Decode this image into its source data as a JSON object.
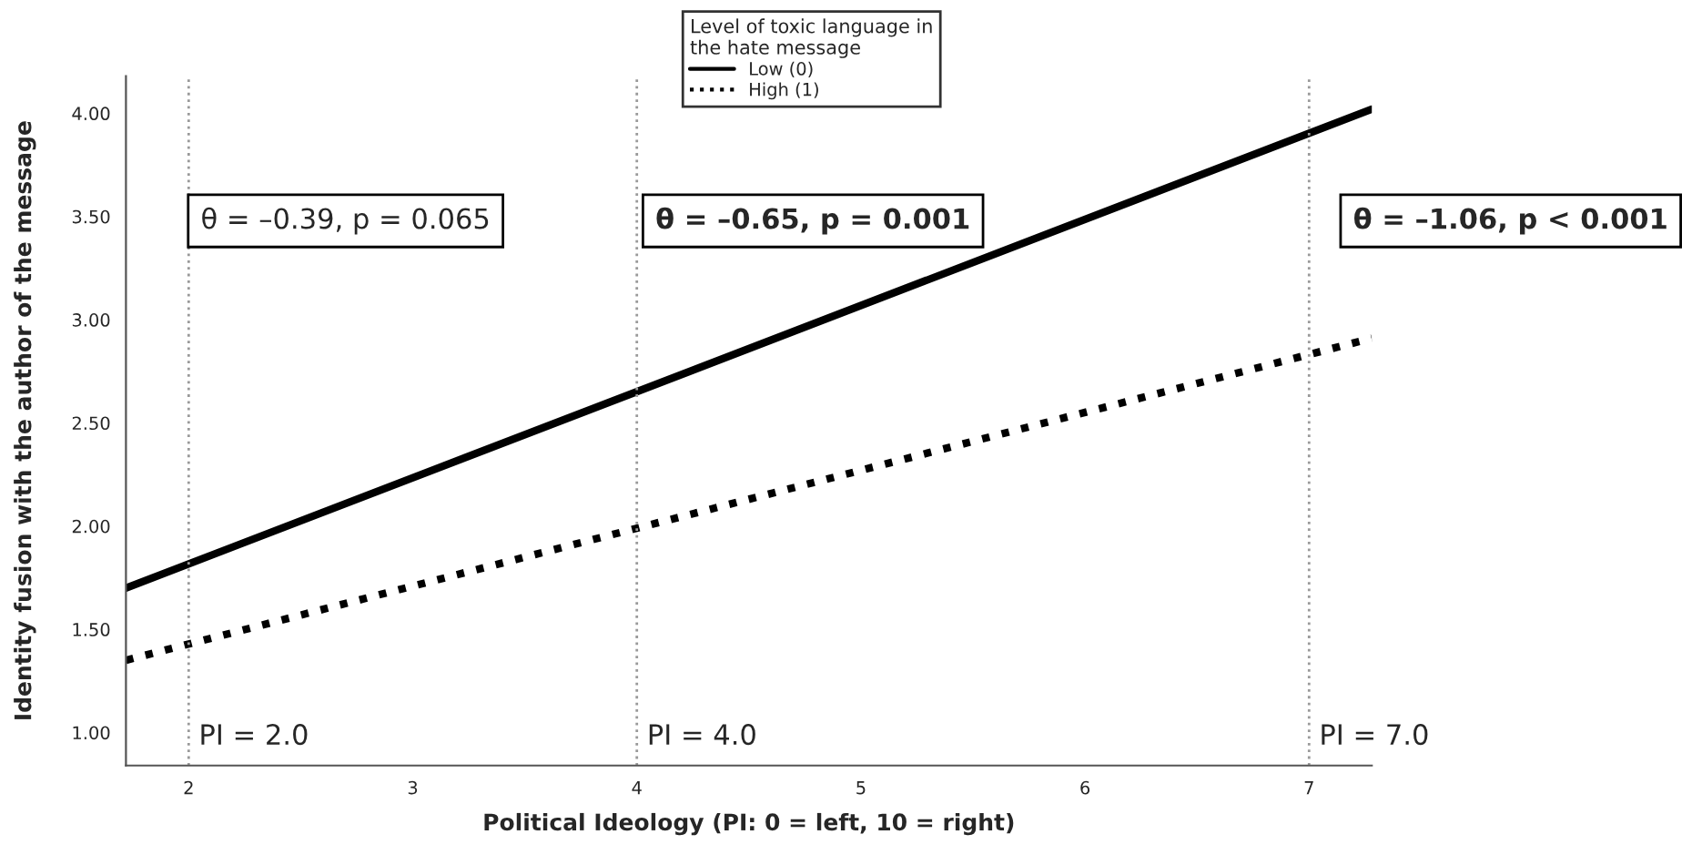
{
  "chart_data": {
    "type": "line",
    "xlabel": "Political Ideology (PI: 0 = left, 10 = right)",
    "ylabel": "Identity fusion with the author of the message",
    "legend_title": "Level of toxic language in\nthe hate message",
    "x": [
      1.72,
      7.28
    ],
    "series": [
      {
        "name": "Low (0)",
        "color": "#000000",
        "values": [
          1.7,
          4.02
        ],
        "line_style": "solid"
      },
      {
        "name": "High (1)",
        "color": "#000000",
        "values": [
          1.35,
          2.91
        ],
        "line_style": "dotted"
      }
    ],
    "xlim": [
      1.72,
      7.28
    ],
    "xticks": [
      2,
      3,
      4,
      5,
      6,
      7
    ],
    "ylim": [
      0.84,
      4.18
    ],
    "yticks": [
      {
        "value": 1,
        "label": "1.00"
      },
      {
        "value": 1.5,
        "label": "1.50"
      },
      {
        "value": 2,
        "label": "2.00"
      },
      {
        "value": 2.5,
        "label": "2.50"
      },
      {
        "value": 3,
        "label": "3.00"
      },
      {
        "value": 3.5,
        "label": "3.50"
      },
      {
        "value": 4,
        "label": "4.00"
      }
    ],
    "ref_lines": [
      {
        "axis": "x",
        "value": 2,
        "label": "PI = 2.0",
        "color": "#999999",
        "line_style": "dotted"
      },
      {
        "axis": "x",
        "value": 4,
        "label": "PI = 4.0",
        "color": "#999999",
        "line_style": "dotted"
      },
      {
        "axis": "x",
        "value": 7,
        "label": "PI = 7.0",
        "color": "#999999",
        "line_style": "dotted"
      }
    ],
    "annotations": [
      "θ = –0.39, p = 0.065",
      "θ = –0.65, p = 0.001",
      "θ = –1.06, p < 0.001"
    ],
    "legend": "top",
    "grid": false
  }
}
